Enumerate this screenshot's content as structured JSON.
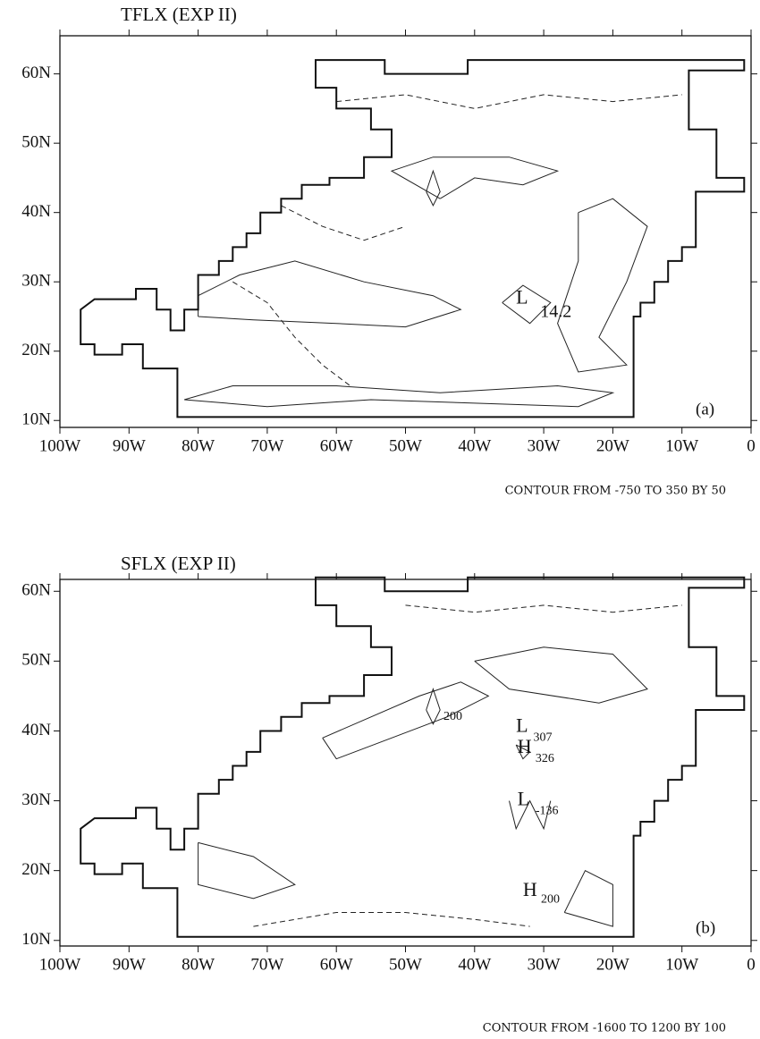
{
  "chart_data": [
    {
      "type": "contour",
      "title": "TFLX (EXP II)",
      "xlim": [
        -100,
        0
      ],
      "ylim": [
        9,
        65.5
      ],
      "xticks": [
        {
          "value": -100,
          "label": "100W"
        },
        {
          "value": -90,
          "label": "90W"
        },
        {
          "value": -80,
          "label": "80W"
        },
        {
          "value": -70,
          "label": "70W"
        },
        {
          "value": -60,
          "label": "60W"
        },
        {
          "value": -50,
          "label": "50W"
        },
        {
          "value": -40,
          "label": "40W"
        },
        {
          "value": -30,
          "label": "30W"
        },
        {
          "value": -20,
          "label": "20W"
        },
        {
          "value": -10,
          "label": "10W"
        },
        0
      ],
      "yticks": [
        {
          "value": 10,
          "label": "10N"
        },
        {
          "value": 20,
          "label": "20N"
        },
        {
          "value": 30,
          "label": "30N"
        },
        {
          "value": 40,
          "label": "40N"
        },
        {
          "value": 50,
          "label": "50N"
        },
        {
          "value": 60,
          "label": "60N"
        }
      ],
      "panel_label": "(a)",
      "note": "CONTOUR FROM -750 TO 350 BY 50",
      "annotations": [
        {
          "label": "L",
          "value": 14.2
        }
      ]
    },
    {
      "type": "contour",
      "title": "SFLX (EXP II)",
      "xlim": [
        -100,
        0
      ],
      "ylim": [
        9.2,
        61.7
      ],
      "xticks": [
        {
          "value": -100,
          "label": "100W"
        },
        {
          "value": -90,
          "label": "90W"
        },
        {
          "value": -80,
          "label": "80W"
        },
        {
          "value": -70,
          "label": "70W"
        },
        {
          "value": -60,
          "label": "60W"
        },
        {
          "value": -50,
          "label": "50W"
        },
        {
          "value": -40,
          "label": "40W"
        },
        {
          "value": -30,
          "label": "30W"
        },
        {
          "value": -20,
          "label": "20W"
        },
        {
          "value": -10,
          "label": "10W"
        },
        0
      ],
      "yticks": [
        {
          "value": 10,
          "label": "10N"
        },
        {
          "value": 20,
          "label": "20N"
        },
        {
          "value": 30,
          "label": "30N"
        },
        {
          "value": 40,
          "label": "40N"
        },
        {
          "value": 50,
          "label": "50N"
        },
        {
          "value": 60,
          "label": "60N"
        }
      ],
      "panel_label": "(b)",
      "note": "CONTOUR FROM -1600 TO 1200 BY 100",
      "annotations": [
        {
          "label": "L",
          "value": 307
        },
        {
          "label": "H",
          "value": 326
        },
        {
          "label": "L",
          "value": -136
        },
        {
          "label": "H",
          "value": 200
        },
        {
          "value": 200
        }
      ]
    }
  ]
}
